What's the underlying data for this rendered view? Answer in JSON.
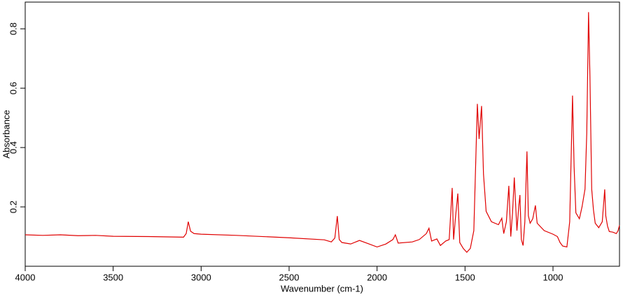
{
  "chart_data": {
    "type": "line",
    "xlabel": "Wavenumber (cm-1)",
    "ylabel": "Absorbance",
    "xlim": [
      4000,
      622
    ],
    "ylim": [
      0,
      0.89
    ],
    "xticks": [
      4000,
      3500,
      3000,
      2500,
      2000,
      1500,
      1000
    ],
    "yticks": [
      0.2,
      0.4,
      0.6,
      0.8
    ],
    "grid": false,
    "series": [
      {
        "name": "Absorbance",
        "color": "#e00000",
        "x": [
          4000,
          3900,
          3800,
          3700,
          3600,
          3500,
          3300,
          3100,
          3085,
          3073,
          3060,
          3040,
          3000,
          2800,
          2500,
          2300,
          2260,
          2240,
          2226,
          2215,
          2200,
          2150,
          2100,
          2050,
          2000,
          1950,
          1910,
          1896,
          1880,
          1800,
          1760,
          1720,
          1705,
          1690,
          1660,
          1640,
          1610,
          1590,
          1573,
          1565,
          1555,
          1541,
          1530,
          1510,
          1490,
          1470,
          1450,
          1430,
          1420,
          1406,
          1395,
          1380,
          1350,
          1310,
          1291,
          1280,
          1265,
          1251,
          1240,
          1230,
          1220,
          1205,
          1195,
          1188,
          1180,
          1170,
          1160,
          1148,
          1140,
          1130,
          1115,
          1100,
          1090,
          1050,
          1000,
          975,
          960,
          945,
          921,
          905,
          889,
          880,
          870,
          850,
          835,
          818,
          808,
          798,
          790,
          780,
          770,
          760,
          740,
          720,
          706,
          700,
          690,
          680,
          660,
          640,
          630,
          622
        ],
        "values": [
          0.106,
          0.104,
          0.106,
          0.103,
          0.104,
          0.101,
          0.1,
          0.098,
          0.11,
          0.15,
          0.118,
          0.11,
          0.108,
          0.104,
          0.096,
          0.089,
          0.082,
          0.095,
          0.169,
          0.09,
          0.08,
          0.075,
          0.087,
          0.076,
          0.065,
          0.075,
          0.09,
          0.106,
          0.078,
          0.082,
          0.09,
          0.11,
          0.128,
          0.085,
          0.092,
          0.07,
          0.085,
          0.09,
          0.264,
          0.09,
          0.16,
          0.245,
          0.08,
          0.06,
          0.047,
          0.06,
          0.12,
          0.547,
          0.429,
          0.54,
          0.31,
          0.185,
          0.15,
          0.14,
          0.162,
          0.11,
          0.15,
          0.271,
          0.1,
          0.18,
          0.299,
          0.12,
          0.2,
          0.24,
          0.09,
          0.07,
          0.15,
          0.387,
          0.17,
          0.145,
          0.16,
          0.205,
          0.145,
          0.12,
          0.108,
          0.1,
          0.08,
          0.068,
          0.065,
          0.15,
          0.575,
          0.335,
          0.18,
          0.16,
          0.2,
          0.26,
          0.45,
          0.856,
          0.64,
          0.26,
          0.19,
          0.145,
          0.13,
          0.15,
          0.259,
          0.17,
          0.135,
          0.117,
          0.115,
          0.11,
          0.12,
          0.138
        ]
      }
    ]
  }
}
